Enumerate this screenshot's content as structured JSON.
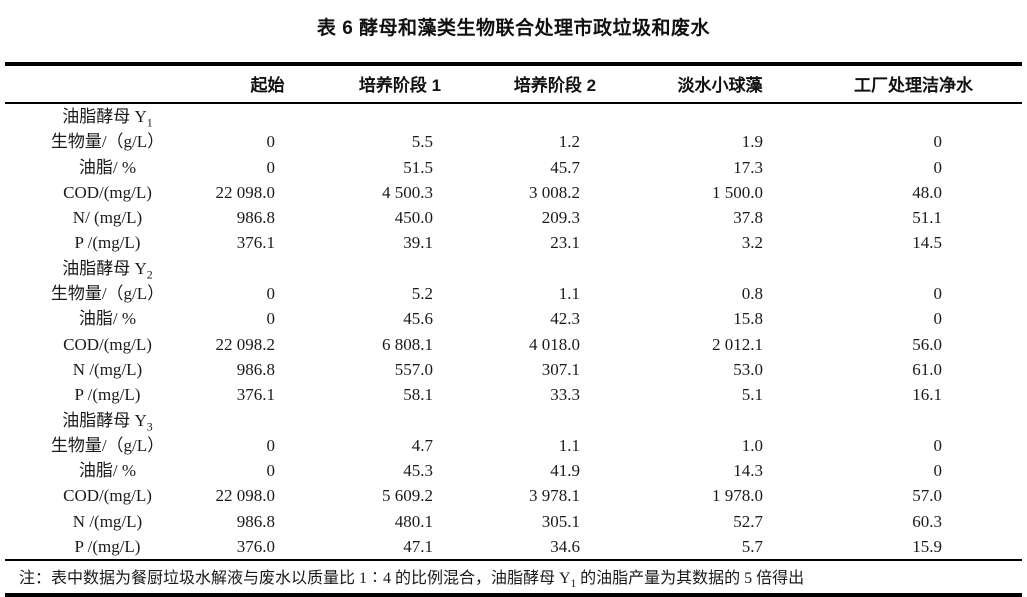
{
  "page": {
    "title": "表 6 酵母和藻类生物联合处理市政垃圾和废水"
  },
  "table": {
    "columns": [
      {
        "label": ""
      },
      {
        "label": "起始"
      },
      {
        "label": "培养阶段 1"
      },
      {
        "label": "培养阶段 2"
      },
      {
        "label": "淡水小球藻"
      },
      {
        "label": "工厂处理洁净水"
      }
    ],
    "sections": [
      {
        "name": "油脂酵母 Y",
        "subscript": "1",
        "rows": [
          {
            "label": "生物量/（g/L）",
            "values": [
              "0",
              "5.5",
              "1.2",
              "1.9",
              "0"
            ]
          },
          {
            "label": "油脂/ %",
            "values": [
              "0",
              "51.5",
              "45.7",
              "17.3",
              "0"
            ]
          },
          {
            "label": "COD/(mg/L)",
            "values": [
              "22 098.0",
              "4 500.3",
              "3 008.2",
              "1 500.0",
              "48.0"
            ]
          },
          {
            "label": "N/ (mg/L)",
            "values": [
              "986.8",
              "450.0",
              "209.3",
              "37.8",
              "51.1"
            ]
          },
          {
            "label": "P /(mg/L)",
            "values": [
              "376.1",
              "39.1",
              "23.1",
              "3.2",
              "14.5"
            ]
          }
        ]
      },
      {
        "name": "油脂酵母 Y",
        "subscript": "2",
        "rows": [
          {
            "label": "生物量/（g/L）",
            "values": [
              "0",
              "5.2",
              "1.1",
              "0.8",
              "0"
            ]
          },
          {
            "label": "油脂/ %",
            "values": [
              "0",
              "45.6",
              "42.3",
              "15.8",
              "0"
            ]
          },
          {
            "label": "COD/(mg/L)",
            "values": [
              "22 098.2",
              "6 808.1",
              "4 018.0",
              "2 012.1",
              "56.0"
            ]
          },
          {
            "label": "N /(mg/L)",
            "values": [
              "986.8",
              "557.0",
              "307.1",
              "53.0",
              "61.0"
            ]
          },
          {
            "label": "P /(mg/L)",
            "values": [
              "376.1",
              "58.1",
              "33.3",
              "5.1",
              "16.1"
            ]
          }
        ]
      },
      {
        "name": "油脂酵母 Y",
        "subscript": "3",
        "rows": [
          {
            "label": "生物量/（g/L）",
            "values": [
              "0",
              "4.7",
              "1.1",
              "1.0",
              "0"
            ]
          },
          {
            "label": "油脂/ %",
            "values": [
              "0",
              "45.3",
              "41.9",
              "14.3",
              "0"
            ]
          },
          {
            "label": "COD/(mg/L)",
            "values": [
              "22 098.0",
              "5 609.2",
              "3 978.1",
              "1 978.0",
              "57.0"
            ]
          },
          {
            "label": "N /(mg/L)",
            "values": [
              "986.8",
              "480.1",
              "305.1",
              "52.7",
              "60.3"
            ]
          },
          {
            "label": "P /(mg/L)",
            "values": [
              "376.0",
              "47.1",
              "34.6",
              "5.7",
              "15.9"
            ]
          }
        ]
      }
    ],
    "note": {
      "prefix": "注：表中数据为餐厨垃圾水解液与废水以质量比 1∶4 的比例混合，油脂酵母 Y",
      "subscript": "1",
      "suffix": " 的油脂产量为其数据的 5 倍得出"
    }
  }
}
